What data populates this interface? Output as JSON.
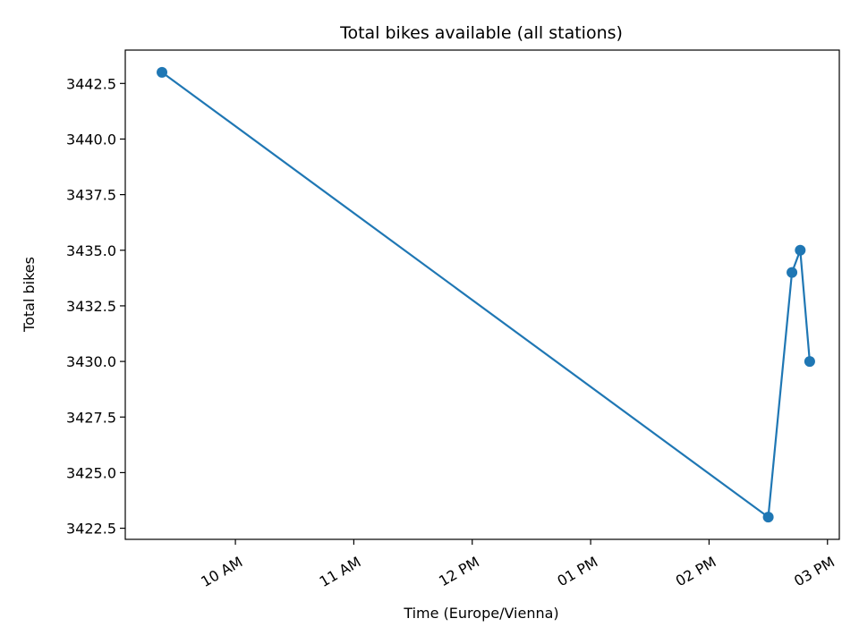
{
  "chart_data": {
    "type": "line",
    "title": "Total bikes available (all stations)",
    "xlabel": "Time (Europe/Vienna)",
    "ylabel": "Total bikes",
    "x_unit": "hours (local time, 24h clock)",
    "xlim": [
      9.07,
      15.1
    ],
    "ylim": [
      3422.0,
      3444.0
    ],
    "x_ticks": [
      {
        "value": 10,
        "label": "10 AM"
      },
      {
        "value": 11,
        "label": "11 AM"
      },
      {
        "value": 12,
        "label": "12 PM"
      },
      {
        "value": 13,
        "label": "01 PM"
      },
      {
        "value": 14,
        "label": "02 PM"
      },
      {
        "value": 15,
        "label": "03 PM"
      }
    ],
    "y_ticks": [
      {
        "value": 3422.5,
        "label": "3422.5"
      },
      {
        "value": 3425.0,
        "label": "3425.0"
      },
      {
        "value": 3427.5,
        "label": "3427.5"
      },
      {
        "value": 3430.0,
        "label": "3430.0"
      },
      {
        "value": 3432.5,
        "label": "3432.5"
      },
      {
        "value": 3435.0,
        "label": "3435.0"
      },
      {
        "value": 3437.5,
        "label": "3437.5"
      },
      {
        "value": 3440.0,
        "label": "3440.0"
      },
      {
        "value": 3442.5,
        "label": "3442.5"
      }
    ],
    "series": [
      {
        "color": "#1f77b4",
        "points": [
          {
            "x": 9.38,
            "y": 3443
          },
          {
            "x": 14.5,
            "y": 3423
          },
          {
            "x": 14.7,
            "y": 3434
          },
          {
            "x": 14.77,
            "y": 3435
          },
          {
            "x": 14.85,
            "y": 3430
          }
        ]
      }
    ],
    "grid": false,
    "legend": "none"
  }
}
